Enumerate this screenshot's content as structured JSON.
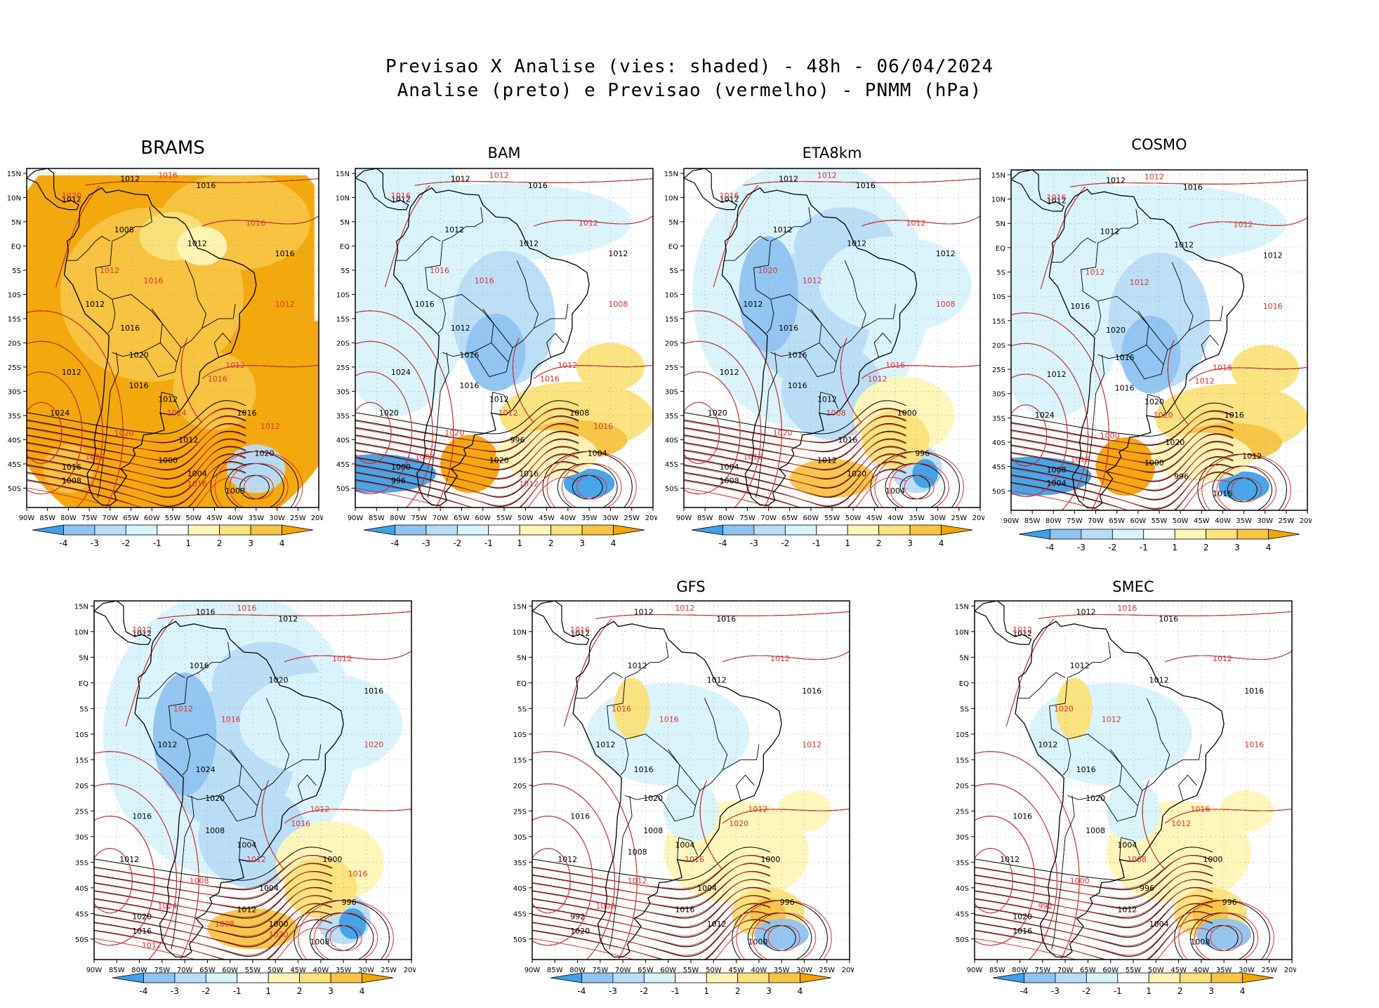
{
  "header": {
    "line1": "Previsao X Analise (vies: shaded) - 48h - 06/04/2024",
    "line2": "Analise (preto) e Previsao (vermelho) - PNMM (hPa)"
  },
  "colors": {
    "neg4": "#3ea0e8",
    "neg3": "#8fc3f0",
    "neg2": "#b9dcf7",
    "neg1": "#d9f3fb",
    "zero": "#ffffff",
    "pos1": "#fff6b8",
    "pos2": "#fbe27a",
    "pos3": "#f7c443",
    "pos4": "#f2a400",
    "analysis": "#000000",
    "forecast": "#e03030"
  },
  "axes": {
    "lat_labels": [
      "15N",
      "10N",
      "5N",
      "EQ",
      "5S",
      "10S",
      "15S",
      "20S",
      "25S",
      "30S",
      "35S",
      "40S",
      "45S",
      "50S"
    ],
    "lon_labels": [
      "90W",
      "85W",
      "80W",
      "75W",
      "70W",
      "65W",
      "60W",
      "55W",
      "50W",
      "45W",
      "40W",
      "35W",
      "30W",
      "25W",
      "20W"
    ]
  },
  "colorbar": {
    "labels": [
      "-4",
      "-3",
      "-2",
      "-1",
      "1",
      "2",
      "3",
      "4"
    ]
  },
  "panels": [
    {
      "id": "brams",
      "title": "BRAMS",
      "bias": "strong-positive",
      "labels_black": [
        "1012",
        "1016",
        "1012",
        "1008",
        "1012",
        "1016",
        "1012",
        "1016",
        "1020",
        "1012",
        "1024",
        "1016",
        "1012",
        "1016",
        "1020",
        "1016",
        "1008",
        "1000",
        "1004",
        "1012",
        "1008"
      ],
      "labels_red": [
        "1016",
        "1020",
        "1016",
        "1012",
        "1016",
        "1012",
        "1012",
        "1016",
        "1024",
        "1020",
        "1020",
        "1016",
        "1012"
      ]
    },
    {
      "id": "bam",
      "title": "BAM",
      "bias": "mixed",
      "labels_black": [
        "1012",
        "1016",
        "1012",
        "1012",
        "1012",
        "1012",
        "1016",
        "1012",
        "1016",
        "1024",
        "1020",
        "1016",
        "1012",
        "1008",
        "1004",
        "1000",
        "996",
        "1020",
        "1016",
        "996"
      ],
      "labels_red": [
        "1012",
        "1016",
        "1012",
        "1008",
        "1016",
        "1016",
        "1012",
        "1016",
        "1012",
        "1020",
        "1008",
        "1012",
        "1016"
      ]
    },
    {
      "id": "eta8km",
      "title": "ETA8km",
      "bias": "negative-north",
      "labels_black": [
        "1012",
        "1016",
        "1012",
        "1012",
        "1012",
        "1012",
        "1012",
        "1016",
        "1016",
        "1012",
        "1020",
        "1016",
        "1012",
        "1000",
        "996",
        "1004",
        "1008",
        "1012",
        "1020",
        "1016",
        "1004"
      ],
      "labels_red": [
        "1012",
        "1016",
        "1012",
        "1008",
        "1012",
        "1020",
        "1016",
        "1012",
        "1008",
        "1020",
        "1016"
      ]
    },
    {
      "id": "cosmo",
      "title": "COSMO",
      "bias": "mixed",
      "labels_black": [
        "1012",
        "1016",
        "1012",
        "1012",
        "1012",
        "1012",
        "1016",
        "1020",
        "1016",
        "1012",
        "1024",
        "1016",
        "1020",
        "1016",
        "1012",
        "1008",
        "1004",
        "1000",
        "996",
        "1020",
        "1016"
      ],
      "labels_red": [
        "1012",
        "1016",
        "1012",
        "1016",
        "1012",
        "1012",
        "1016",
        "1012",
        "1020",
        "1000",
        "1016"
      ]
    },
    {
      "id": "model5",
      "title": "",
      "bias": "negative-north",
      "labels_black": [
        "1016",
        "1012",
        "1012",
        "1016",
        "1020",
        "1016",
        "1012",
        "1024",
        "1020",
        "1016",
        "1012",
        "1008",
        "1004",
        "1000",
        "996",
        "1020",
        "1016",
        "1012",
        "1000",
        "1004",
        "1008"
      ],
      "labels_red": [
        "1016",
        "1012",
        "1012",
        "1020",
        "1016",
        "1012",
        "1012",
        "1016",
        "1012",
        "1008",
        "1024",
        "1020",
        "1016",
        "1012",
        "1008"
      ]
    },
    {
      "id": "gfs",
      "title": "GFS",
      "bias": "slight",
      "labels_black": [
        "1012",
        "1016",
        "1012",
        "1012",
        "1012",
        "1016",
        "1012",
        "1016",
        "1020",
        "1016",
        "1012",
        "1008",
        "1004",
        "1000",
        "996",
        "992",
        "1020",
        "1016",
        "1012",
        "1004",
        "1000",
        "1008"
      ],
      "labels_red": [
        "1012",
        "1016",
        "1012",
        "1012",
        "1016",
        "1016",
        "1012",
        "1020",
        "1016",
        "1012",
        "1008"
      ]
    },
    {
      "id": "smec",
      "title": "SMEC",
      "bias": "slight",
      "labels_black": [
        "1012",
        "1016",
        "1012",
        "1012",
        "1012",
        "1016",
        "1012",
        "1016",
        "1020",
        "1016",
        "1012",
        "1008",
        "1004",
        "1000",
        "996",
        "1020",
        "1016",
        "1012",
        "1004",
        "996",
        "1008"
      ],
      "labels_red": [
        "1016",
        "1012",
        "1012",
        "1016",
        "1012",
        "1020",
        "1016",
        "1012",
        "1008",
        "1000",
        "992"
      ]
    }
  ]
}
